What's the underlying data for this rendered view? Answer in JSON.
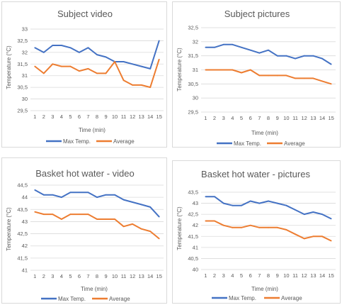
{
  "chart_data": [
    {
      "type": "line",
      "title": "Subject video",
      "xlabel": "Time (min)",
      "ylabel": "Temperature (°C)",
      "x": [
        1,
        2,
        3,
        4,
        5,
        6,
        7,
        8,
        9,
        10,
        11,
        12,
        13,
        14,
        15
      ],
      "x_tick_labels": [
        "1",
        "2",
        "3",
        "4",
        "5",
        "6",
        "7",
        "8",
        "9",
        "10",
        "11",
        "12",
        "13",
        "14",
        "15"
      ],
      "ylim": [
        29.5,
        33
      ],
      "y_tick_labels": [
        "29,5",
        "30",
        "30,5",
        "31",
        "31,5",
        "32",
        "32,5",
        "33"
      ],
      "grid": true,
      "legend": "bottom",
      "series": [
        {
          "name": "Max Temp.",
          "color": "#4472c4",
          "values": [
            32.2,
            32.0,
            32.3,
            32.3,
            32.2,
            32.0,
            32.2,
            31.9,
            31.8,
            31.6,
            31.6,
            31.5,
            31.4,
            31.3,
            32.5
          ]
        },
        {
          "name": "Average",
          "color": "#ed7d31",
          "values": [
            31.4,
            31.1,
            31.5,
            31.4,
            31.4,
            31.2,
            31.3,
            31.1,
            31.1,
            31.6,
            30.8,
            30.6,
            30.6,
            30.5,
            31.7
          ]
        }
      ]
    },
    {
      "type": "line",
      "title": "Subject pictures",
      "xlabel": "Time (min)",
      "ylabel": "Temperature (°C)",
      "x": [
        1,
        2,
        3,
        4,
        5,
        6,
        7,
        8,
        9,
        10,
        11,
        12,
        13,
        14,
        15
      ],
      "x_tick_labels": [
        "1",
        "2",
        "3",
        "4",
        "5",
        "6",
        "7",
        "8",
        "9",
        "10",
        "11",
        "12",
        "13",
        "14",
        "15"
      ],
      "ylim": [
        29.5,
        32.5
      ],
      "y_tick_labels": [
        "29,5",
        "30",
        "30,5",
        "31",
        "31,5",
        "32",
        "32,5"
      ],
      "grid": true,
      "legend": "bottom",
      "series": [
        {
          "name": "Max Temp.",
          "color": "#4472c4",
          "values": [
            31.8,
            31.8,
            31.9,
            31.9,
            31.8,
            31.7,
            31.6,
            31.7,
            31.5,
            31.5,
            31.4,
            31.5,
            31.5,
            31.4,
            31.2
          ]
        },
        {
          "name": "Average",
          "color": "#ed7d31",
          "values": [
            31.0,
            31.0,
            31.0,
            31.0,
            30.9,
            31.0,
            30.8,
            30.8,
            30.8,
            30.8,
            30.7,
            30.7,
            30.7,
            30.6,
            30.5
          ]
        }
      ]
    },
    {
      "type": "line",
      "title": "Basket hot water - video",
      "xlabel": "Time (min)",
      "ylabel": "Temperature (°C)",
      "x": [
        1,
        2,
        3,
        4,
        5,
        6,
        7,
        8,
        9,
        10,
        11,
        12,
        13,
        14,
        15
      ],
      "x_tick_labels": [
        "1",
        "2",
        "3",
        "4",
        "5",
        "6",
        "7",
        "8",
        "9",
        "10",
        "11",
        "12",
        "13",
        "14",
        "15"
      ],
      "ylim": [
        41,
        44.5
      ],
      "y_tick_labels": [
        "41",
        "41,5",
        "42",
        "42,5",
        "43",
        "43,5",
        "44",
        "44,5"
      ],
      "grid": true,
      "legend": "bottom",
      "series": [
        {
          "name": "Max Temp.",
          "color": "#4472c4",
          "values": [
            44.3,
            44.1,
            44.1,
            44.0,
            44.2,
            44.2,
            44.2,
            44.0,
            44.1,
            44.1,
            43.9,
            43.8,
            43.7,
            43.6,
            43.2
          ]
        },
        {
          "name": "Average",
          "color": "#ed7d31",
          "values": [
            43.4,
            43.3,
            43.3,
            43.1,
            43.3,
            43.3,
            43.3,
            43.1,
            43.1,
            43.1,
            42.8,
            42.9,
            42.7,
            42.6,
            42.3
          ]
        }
      ]
    },
    {
      "type": "line",
      "title": "Basket hot water - pictures",
      "xlabel": "Time (min)",
      "ylabel": "Temperature (°C)",
      "x": [
        1,
        2,
        3,
        4,
        5,
        6,
        7,
        8,
        9,
        10,
        11,
        12,
        13,
        14,
        15
      ],
      "x_tick_labels": [
        "1",
        "2",
        "3",
        "4",
        "5",
        "6",
        "7",
        "8",
        "9",
        "10",
        "11",
        "12",
        "13",
        "14",
        "15"
      ],
      "ylim": [
        40,
        43.5
      ],
      "y_tick_labels": [
        "40",
        "40,5",
        "41",
        "41,5",
        "42",
        "42,5",
        "43",
        "43,5"
      ],
      "grid": true,
      "legend": "bottom",
      "series": [
        {
          "name": "Max Temp.",
          "color": "#4472c4",
          "values": [
            43.3,
            43.3,
            43.0,
            42.9,
            42.9,
            43.1,
            43.0,
            43.1,
            43.0,
            42.9,
            42.7,
            42.5,
            42.6,
            42.5,
            42.3
          ]
        },
        {
          "name": "Average",
          "color": "#ed7d31",
          "values": [
            42.2,
            42.2,
            42.0,
            41.9,
            41.9,
            42.0,
            41.9,
            41.9,
            41.9,
            41.8,
            41.6,
            41.4,
            41.5,
            41.5,
            41.3
          ]
        }
      ]
    }
  ]
}
